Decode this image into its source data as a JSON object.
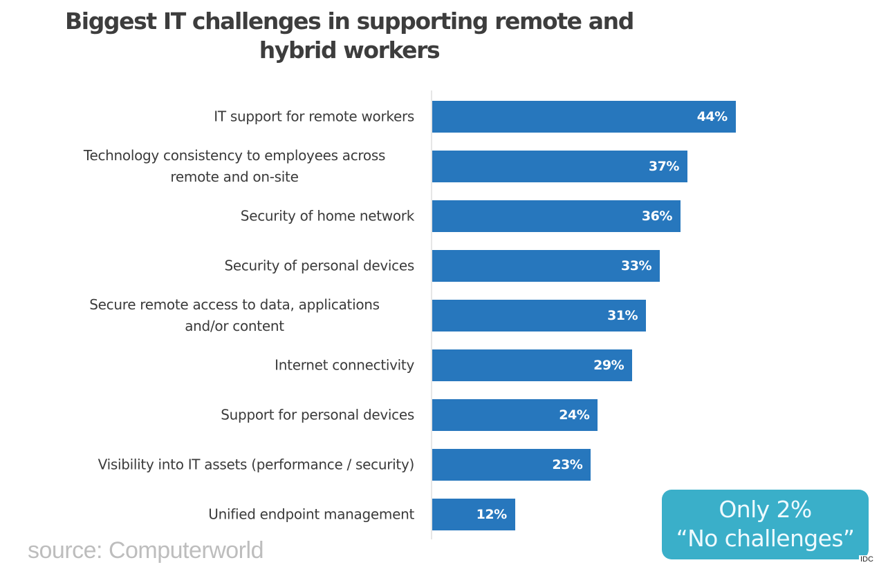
{
  "chart_data": {
    "type": "bar",
    "orientation": "horizontal",
    "title": "Biggest IT challenges in supporting remote and hybrid workers",
    "categories": [
      "IT support for remote workers",
      "Technology consistency to employees across remote and on-site",
      "Security of home network",
      "Security of personal devices",
      "Secure remote access to data, applications and/or content",
      "Internet connectivity",
      "Support for personal devices",
      "Visibility into IT assets (performance / security)",
      "Unified endpoint management"
    ],
    "values": [
      44,
      37,
      36,
      33,
      31,
      29,
      24,
      23,
      12
    ],
    "value_labels": [
      "44%",
      "37%",
      "36%",
      "33%",
      "31%",
      "29%",
      "24%",
      "23%",
      "12%"
    ],
    "unit": "%",
    "xlabel": "",
    "ylabel": "",
    "xlim": [
      0,
      45
    ],
    "grid": false,
    "legend": null,
    "annotations": [
      "Only 2% “No challenges”"
    ],
    "bar_color": "#2777bd"
  },
  "title": {
    "line1": "Biggest IT challenges in supporting remote and",
    "line2": "hybrid workers"
  },
  "rows": [
    {
      "lines": [
        "IT support for remote workers"
      ],
      "value": 44,
      "label": "44%"
    },
    {
      "lines": [
        "Technology consistency to employees across",
        "remote and on-site"
      ],
      "value": 37,
      "label": "37%"
    },
    {
      "lines": [
        "Security of home network"
      ],
      "value": 36,
      "label": "36%"
    },
    {
      "lines": [
        "Security of personal devices"
      ],
      "value": 33,
      "label": "33%"
    },
    {
      "lines": [
        "Secure remote access to data, applications",
        "and/or content"
      ],
      "value": 31,
      "label": "31%"
    },
    {
      "lines": [
        "Internet connectivity"
      ],
      "value": 29,
      "label": "29%"
    },
    {
      "lines": [
        "Support for personal devices"
      ],
      "value": 24,
      "label": "24%"
    },
    {
      "lines": [
        "Visibility into IT assets (performance / security)"
      ],
      "value": 23,
      "label": "23%"
    },
    {
      "lines": [
        "Unified endpoint management"
      ],
      "value": 12,
      "label": "12%"
    }
  ],
  "callout": {
    "line1": "Only 2%",
    "line2": "“No challenges”",
    "color": "#3aafc9"
  },
  "source": "source: Computerworld",
  "credit": "IDC",
  "colors": {
    "bar": "#2777bd",
    "callout": "#3aafc9",
    "title_text": "#3d3d3d",
    "label_text": "#3a3a3a",
    "source_text": "#bdbdbd"
  }
}
